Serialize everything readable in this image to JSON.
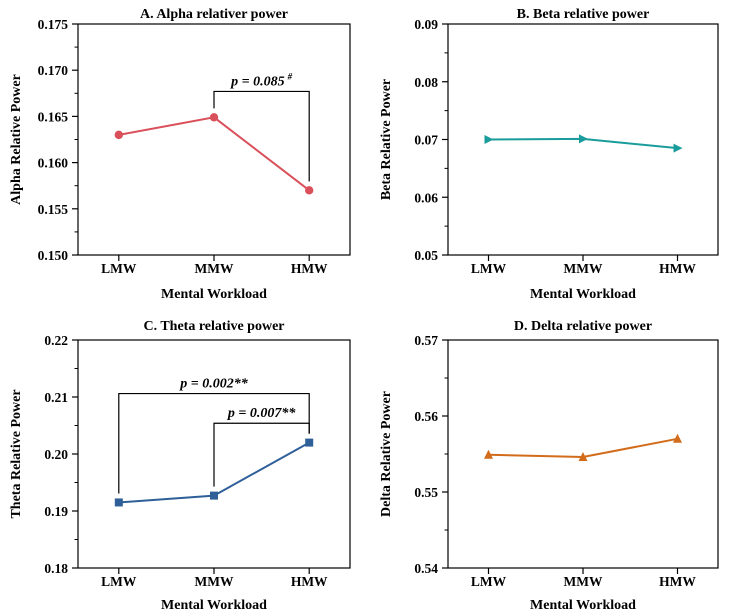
{
  "chart_data": [
    {
      "type": "line",
      "title": "A. Alpha relativer power",
      "xlabel": "Mental Workload",
      "ylabel": "Alpha Relative Power",
      "categories": [
        "LMW",
        "MMW",
        "HMW"
      ],
      "values": [
        0.163,
        0.1649,
        0.157
      ],
      "ylim": [
        0.15,
        0.175
      ],
      "yticks": [
        "0.150",
        "0.155",
        "0.160",
        "0.165",
        "0.170",
        "0.175"
      ],
      "color": "#d9505a",
      "marker": "circle",
      "annotations": [
        {
          "text": "p = 0.085",
          "sup": "#",
          "from": 1,
          "to": 2,
          "level": 0.1677
        }
      ]
    },
    {
      "type": "line",
      "title": "B. Beta relative power",
      "xlabel": "Mental Workload",
      "ylabel": "Beta Relative Power",
      "categories": [
        "LMW",
        "MMW",
        "HMW"
      ],
      "values": [
        0.07,
        0.0701,
        0.0685
      ],
      "ylim": [
        0.05,
        0.09
      ],
      "yticks": [
        "0.05",
        "0.06",
        "0.07",
        "0.08",
        "0.09"
      ],
      "color": "#1a9c9c",
      "marker": "triangle-right",
      "annotations": []
    },
    {
      "type": "line",
      "title": "C. Theta relative power",
      "xlabel": "Mental Workload",
      "ylabel": "Theta Relative Power",
      "categories": [
        "LMW",
        "MMW",
        "HMW"
      ],
      "values": [
        0.1915,
        0.1927,
        0.202
      ],
      "ylim": [
        0.18,
        0.22
      ],
      "yticks": [
        "0.18",
        "0.19",
        "0.20",
        "0.21",
        "0.22"
      ],
      "color": "#2e5f98",
      "marker": "square",
      "annotations": [
        {
          "text": "p = 0.002**",
          "sup": "",
          "from": 0,
          "to": 2,
          "level": 0.2106
        },
        {
          "text": "p = 0.007**",
          "sup": "",
          "from": 1,
          "to": 2,
          "level": 0.2054
        }
      ]
    },
    {
      "type": "line",
      "title": "D. Delta relative power",
      "xlabel": "Mental Workload",
      "ylabel": "Delta Relative Power",
      "categories": [
        "LMW",
        "MMW",
        "HMW"
      ],
      "values": [
        0.5549,
        0.5546,
        0.557
      ],
      "ylim": [
        0.54,
        0.57
      ],
      "yticks": [
        "0.54",
        "0.55",
        "0.56",
        "0.57"
      ],
      "color": "#d26c1a",
      "marker": "triangle-up",
      "annotations": []
    }
  ]
}
